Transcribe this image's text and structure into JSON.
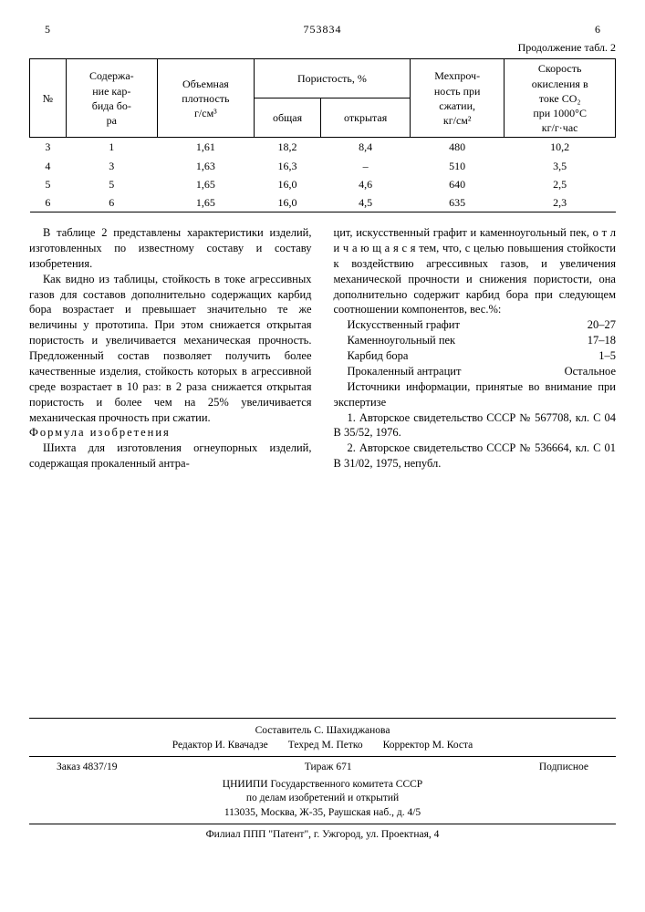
{
  "header": {
    "left_page": "5",
    "doc_number": "753834",
    "right_page": "6",
    "continuation": "Продолжение табл. 2"
  },
  "table": {
    "columns": {
      "c0": "№",
      "c1": "Содержа-\nние кар-\nбида бо-\nра",
      "c2": "Объемная\nплотность\nг/см³",
      "c3": "Пористость, %",
      "c3a": "общая",
      "c3b": "открытая",
      "c4": "Мехпроч-\nность при\nсжатии,\nкг/см²",
      "c5": "Скорость\nокисления в\nтоке CO₂\nпри 1000°C\nкг/г·час"
    },
    "rows": [
      {
        "n": "3",
        "cb": "1",
        "dens": "1,61",
        "por_t": "18,2",
        "por_o": "8,4",
        "str": "480",
        "ox": "10,2"
      },
      {
        "n": "4",
        "cb": "3",
        "dens": "1,63",
        "por_t": "16,3",
        "por_o": "–",
        "str": "510",
        "ox": "3,5"
      },
      {
        "n": "5",
        "cb": "5",
        "dens": "1,65",
        "por_t": "16,0",
        "por_o": "4,6",
        "str": "640",
        "ox": "2,5"
      },
      {
        "n": "6",
        "cb": "6",
        "dens": "1,65",
        "por_t": "16,0",
        "por_o": "4,5",
        "str": "635",
        "ox": "2,3"
      }
    ]
  },
  "body": {
    "p1": "В таблице 2 представлены характеристики изделий, изготовленных по известному составу и составу изобретения.",
    "p2": "Как видно из таблицы, стойкость в токе агрессивных газов для составов дополнительно содержащих карбид бора возрастает и превышает значительно те же величины у прототипа. При этом снижается открытая пористость и увеличивается механическая прочность. Предложенный состав позволяет получить более качественные изделия, стойкость которых в агрессивной среде возрастает в 10 раз: в 2 раза снижается открытая пористость и более чем на 25% увеличивается механическая прочность при сжатии.",
    "formula_label": "Формула изобретения",
    "p3a": "Шихта для изготовления огнеупорных изделий, содержащая прокаленный антра-",
    "p3b": "цит, искусственный графит и каменноугольный пек, о т л и ч а ю щ а я с я тем, что, с целью повышения стойкости к воздействию агрессивных газов, и увеличения механической прочности и снижения пористости, она дополнительно содержит карбид бора при следующем соотношении компонентов, вес.%:",
    "components": [
      {
        "name": "Искусственный графит",
        "val": "20–27"
      },
      {
        "name": "Каменноугольный пек",
        "val": "17–18"
      },
      {
        "name": "Карбид бора",
        "val": "1–5"
      },
      {
        "name": "Прокаленный антрацит",
        "val": "Остальное"
      }
    ],
    "sources_label": "Источники информации, принятые во внимание при экспертизе",
    "src1": "1. Авторское свидетельство СССР № 567708, кл. C 04 B 35/52, 1976.",
    "src2": "2. Авторское свидетельство СССР № 536664, кл. C 01 B 31/02, 1975, непубл."
  },
  "footer": {
    "compiler": "Составитель С. Шахиджанова",
    "editor": "Редактор И. Квачадзе",
    "techred": "Техред М. Петко",
    "corrector": "Корректор М. Коста",
    "order": "Заказ 4837/19",
    "tirazh": "Тираж 671",
    "podpisnoe": "Подписное",
    "org1": "ЦНИИПИ Государственного комитета СССР",
    "org2": "по делам изобретений и открытий",
    "addr": "113035, Москва, Ж-35, Раушская наб., д. 4/5",
    "filial": "Филиал ППП \"Патент\", г. Ужгород, ул. Проектная, 4"
  }
}
